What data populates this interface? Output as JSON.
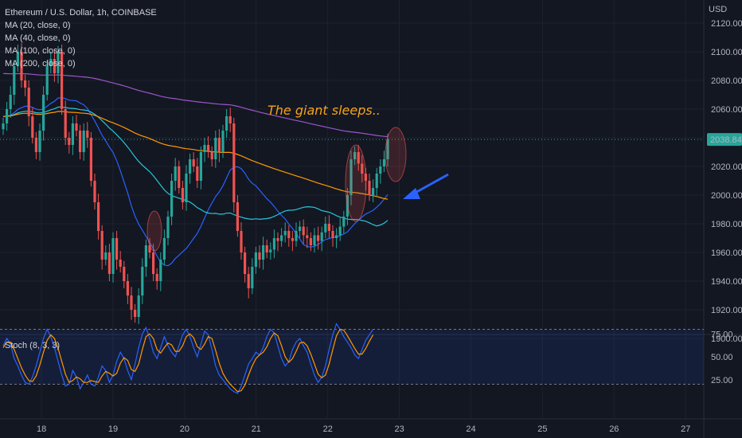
{
  "legend": {
    "symbol": "Ethereum / U.S. Dollar, 1h, COINBASE",
    "ma20": "MA (20, close, 0)",
    "ma40": "MA (40, close, 0)",
    "ma100": "MA (100, close, 0)",
    "ma200": "MA (200, close, 0)"
  },
  "currency": "USD",
  "annotation": "The giant sleeps..",
  "stoch_title": "Stoch (8, 3, 3)",
  "last_price": "2038.84",
  "colors": {
    "up": "#26a69a",
    "down": "#ef5350",
    "ma20": "#2962ff",
    "ma40": "#26c6da",
    "ma100": "#ff9800",
    "ma200": "#9c56c9",
    "stochK": "#2962ff",
    "stochD": "#ff9800",
    "arrow": "#2962ff",
    "annotation": "#f7a21b"
  },
  "chart_data": {
    "type": "candlestick",
    "price_axis": {
      "ticks": [
        1900,
        1920,
        1940,
        1960,
        1980,
        2000,
        2020,
        2040,
        2060,
        2080,
        2100,
        2120
      ],
      "labels": [
        "1900.00",
        "1920.00",
        "1940.00",
        "1960.00",
        "1980.00",
        "2000.00",
        "2020.00",
        "2040.00",
        "2060.00",
        "2080.00",
        "2100.00",
        "2120.00"
      ]
    },
    "time_axis": {
      "labels": [
        "18",
        "19",
        "20",
        "21",
        "22",
        "23",
        "24",
        "25",
        "26",
        "27"
      ]
    },
    "stoch_axis": {
      "labels": [
        "25.00",
        "50.00",
        "75.00"
      ],
      "levels": [
        20,
        80
      ]
    },
    "candles_close": [
      2050,
      2060,
      2070,
      2090,
      2100,
      2080,
      2075,
      2055,
      2040,
      2030,
      2045,
      2070,
      2090,
      2095,
      2085,
      2100,
      2060,
      2040,
      2035,
      2050,
      2045,
      2030,
      2045,
      2040,
      2010,
      1995,
      1975,
      1955,
      1960,
      1945,
      1970,
      1955,
      1950,
      1940,
      1930,
      1920,
      1915,
      1930,
      1950,
      1965,
      1960,
      1945,
      1940,
      1955,
      1970,
      1985,
      2010,
      2020,
      2005,
      1995,
      2015,
      2025,
      2020,
      2010,
      2030,
      2035,
      2030,
      2025,
      2040,
      2030,
      2045,
      2055,
      2050,
      1995,
      1975,
      1960,
      1945,
      1935,
      1950,
      1960,
      1955,
      1965,
      1960,
      1962,
      1970,
      1968,
      1972,
      1975,
      1970,
      1968,
      1975,
      1978,
      1972,
      1970,
      1965,
      1972,
      1968,
      1974,
      1980,
      1975,
      1970,
      1972,
      1978,
      1985,
      2000,
      2025,
      2030,
      2022,
      2015,
      2010,
      2000,
      2005,
      2015,
      2020,
      2025,
      2038.84
    ],
    "stoch_k": [
      62,
      70,
      64,
      48,
      40,
      30,
      22,
      20,
      28,
      40,
      55,
      70,
      80,
      72,
      60,
      45,
      30,
      18,
      20,
      35,
      28,
      15,
      22,
      30,
      20,
      18,
      28,
      40,
      35,
      22,
      30,
      45,
      55,
      48,
      35,
      25,
      42,
      60,
      75,
      82,
      70,
      55,
      48,
      60,
      72,
      62,
      55,
      50,
      62,
      74,
      80,
      72,
      60,
      50,
      64,
      78,
      74,
      58,
      40,
      30,
      25,
      20,
      15,
      12,
      10,
      18,
      30,
      42,
      48,
      55,
      52,
      60,
      72,
      80,
      76,
      62,
      48,
      40,
      45,
      58,
      66,
      70,
      62,
      55,
      42,
      30,
      22,
      28,
      40,
      58,
      74,
      86,
      80,
      72,
      66,
      60,
      52,
      48,
      58,
      68,
      74,
      80
    ],
    "stoch_d": [
      60,
      66,
      66,
      58,
      48,
      38,
      30,
      24,
      23,
      29,
      41,
      55,
      68,
      74,
      70,
      59,
      45,
      31,
      22,
      24,
      28,
      26,
      22,
      22,
      24,
      23,
      22,
      29,
      34,
      32,
      29,
      32,
      43,
      49,
      46,
      36,
      34,
      42,
      58,
      72,
      75,
      70,
      58,
      54,
      60,
      65,
      63,
      56,
      56,
      62,
      72,
      75,
      71,
      61,
      58,
      64,
      72,
      70,
      57,
      43,
      32,
      25,
      20,
      16,
      12,
      13,
      19,
      30,
      40,
      48,
      52,
      55,
      61,
      70,
      76,
      73,
      62,
      50,
      44,
      48,
      56,
      65,
      66,
      62,
      53,
      42,
      31,
      27,
      30,
      42,
      58,
      73,
      80,
      79,
      73,
      66,
      59,
      53,
      53,
      59,
      67,
      74
    ]
  }
}
